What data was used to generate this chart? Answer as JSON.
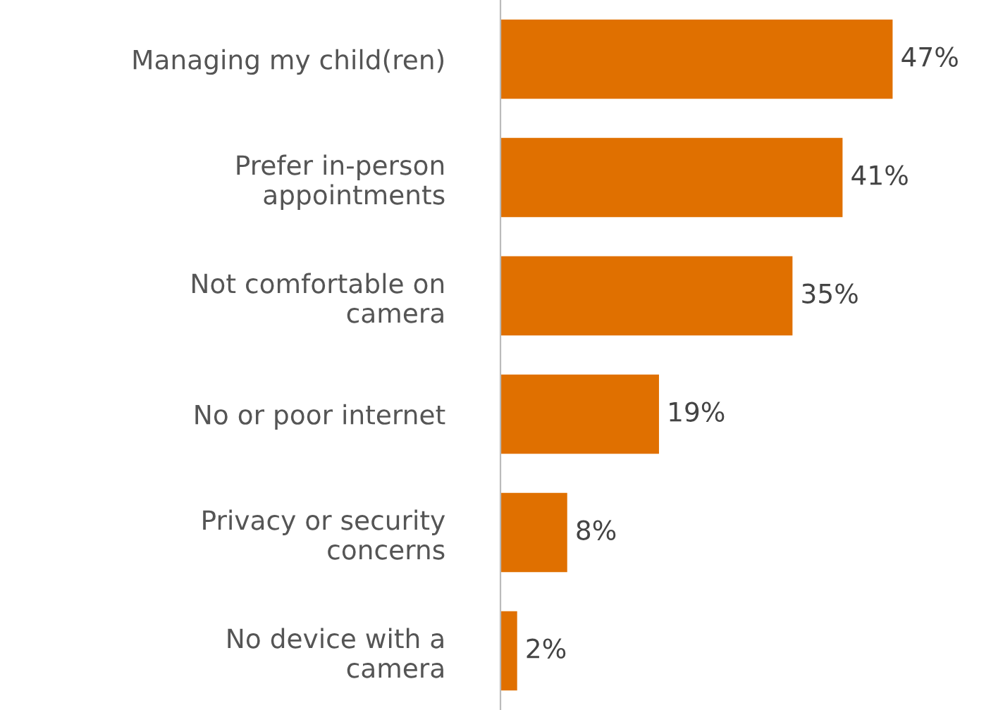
{
  "chart_data": {
    "type": "bar",
    "orientation": "horizontal",
    "categories": [
      "Managing my child(ren)",
      "Prefer in-person appointments",
      "Not comfortable on camera",
      "No or poor internet",
      "Privacy or security concerns",
      "No device with a camera"
    ],
    "values": [
      47,
      41,
      35,
      19,
      8,
      2
    ],
    "value_labels": [
      "47%",
      "41%",
      "35%",
      "19%",
      "8%",
      "2%"
    ],
    "color": "#e07000",
    "grid": false,
    "legend": false
  }
}
